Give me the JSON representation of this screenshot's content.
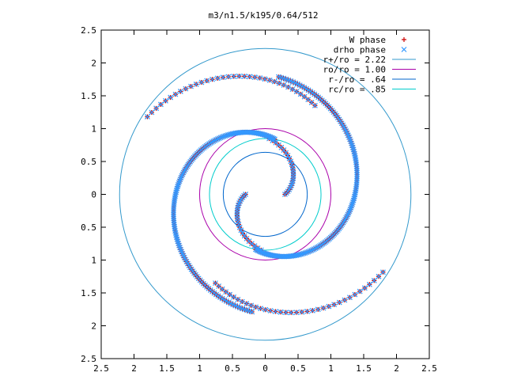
{
  "chart_data": {
    "type": "scatter",
    "title": "m3/n1.5/k195/0.64/512",
    "xlabel": "",
    "ylabel": "",
    "xlim": [
      -2.5,
      2.5
    ],
    "ylim": [
      -2.5,
      2.5
    ],
    "x_ticks": [
      -2.5,
      -2,
      -1.5,
      -1,
      -0.5,
      0,
      0.5,
      1,
      1.5,
      2,
      2.5
    ],
    "y_ticks": [
      -2.5,
      -2,
      -1.5,
      -1,
      -0.5,
      0,
      0.5,
      1,
      1.5,
      2,
      2.5
    ],
    "x_tick_labels": [
      "2.5",
      "2",
      "1.5",
      "1",
      "0.5",
      "0",
      "0.5",
      "1",
      "1.5",
      "2",
      "2.5"
    ],
    "y_tick_labels": [
      "2.5",
      "2",
      "1.5",
      "1",
      "0.5",
      "0",
      "0.5",
      "1",
      "1.5",
      "2",
      "2.5"
    ],
    "grid": false,
    "legend_position": "top-right",
    "series": [
      {
        "name": "W phase",
        "kind": "points",
        "marker": "plus",
        "color": "#cc0000",
        "spirals": [
          {
            "r_start": 0.3,
            "r_end": 0.85,
            "theta_start": 0.0,
            "theta_end": 1.5,
            "n": 24
          },
          {
            "r_start": 0.3,
            "r_end": 0.85,
            "theta_start": 3.14,
            "theta_end": 4.64,
            "n": 24
          },
          {
            "r_start": 0.85,
            "r_end": 1.8,
            "theta_start": 1.4,
            "theta_end": 4.6,
            "n": 150
          },
          {
            "r_start": 0.85,
            "r_end": 1.8,
            "theta_start": 4.54,
            "theta_end": 7.74,
            "n": 150
          },
          {
            "r_start": 1.55,
            "r_end": 2.15,
            "theta_start": 4.2,
            "theta_end": 5.7,
            "n": 36
          },
          {
            "r_start": 1.55,
            "r_end": 2.15,
            "theta_start": 1.06,
            "theta_end": 2.56,
            "n": 36
          }
        ]
      },
      {
        "name": "drho phase",
        "kind": "points",
        "marker": "cross",
        "color": "#3399ff",
        "spirals": [
          {
            "r_start": 0.3,
            "r_end": 0.85,
            "theta_start": 0.0,
            "theta_end": 1.5,
            "n": 24
          },
          {
            "r_start": 0.3,
            "r_end": 0.85,
            "theta_start": 3.14,
            "theta_end": 4.64,
            "n": 24
          },
          {
            "r_start": 0.85,
            "r_end": 1.8,
            "theta_start": 1.4,
            "theta_end": 4.6,
            "n": 150
          },
          {
            "r_start": 0.85,
            "r_end": 1.8,
            "theta_start": 4.54,
            "theta_end": 7.74,
            "n": 150
          },
          {
            "r_start": 1.55,
            "r_end": 2.15,
            "theta_start": 4.2,
            "theta_end": 5.7,
            "n": 36
          },
          {
            "r_start": 1.55,
            "r_end": 2.15,
            "theta_start": 1.06,
            "theta_end": 2.56,
            "n": 36
          }
        ]
      },
      {
        "name": "r+/ro = 2.22",
        "kind": "circle",
        "r": 2.22,
        "color": "#3399cc"
      },
      {
        "name": "ro/ro = 1.00",
        "kind": "circle",
        "r": 1.0,
        "color": "#aa00aa"
      },
      {
        "name": "r-/ro = .64",
        "kind": "circle",
        "r": 0.64,
        "color": "#0066cc"
      },
      {
        "name": "rc/ro = .85",
        "kind": "circle",
        "r": 0.85,
        "color": "#00cccc"
      }
    ]
  }
}
